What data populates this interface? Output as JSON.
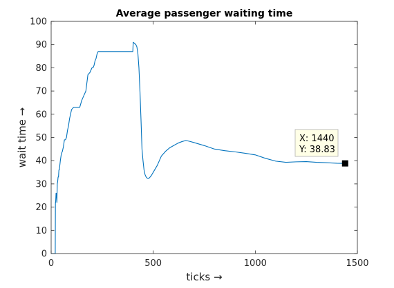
{
  "chart_data": {
    "type": "line",
    "title": "Average passenger waiting time",
    "xlabel": "ticks →",
    "ylabel": "wait time →",
    "xlim": [
      0,
      1500
    ],
    "ylim": [
      0,
      100
    ],
    "xticks": [
      0,
      500,
      1000,
      1500
    ],
    "yticks": [
      0,
      10,
      20,
      30,
      40,
      50,
      60,
      70,
      80,
      90,
      100
    ],
    "grid": false,
    "legend": null,
    "series": [
      {
        "color": "#0072BD",
        "x": [
          0,
          20,
          21,
          22,
          24,
          26,
          28,
          30,
          32,
          34,
          36,
          38,
          40,
          45,
          50,
          55,
          60,
          65,
          70,
          75,
          80,
          85,
          90,
          95,
          100,
          110,
          120,
          130,
          140,
          150,
          160,
          170,
          180,
          190,
          200,
          205,
          210,
          215,
          220,
          225,
          230,
          235,
          240,
          300,
          360,
          400,
          402,
          415,
          420,
          425,
          430,
          435,
          440,
          445,
          450,
          455,
          460,
          465,
          470,
          475,
          480,
          490,
          500,
          520,
          540,
          560,
          580,
          600,
          620,
          640,
          660,
          680,
          700,
          750,
          800,
          850,
          900,
          950,
          1000,
          1050,
          1100,
          1150,
          1200,
          1250,
          1300,
          1350,
          1400,
          1440
        ],
        "y": [
          0,
          0,
          22,
          22,
          26,
          26,
          22,
          30,
          31,
          33,
          33,
          36,
          36,
          40,
          43,
          44,
          46,
          49,
          49,
          50,
          53,
          55,
          58,
          60,
          62,
          63,
          63,
          63,
          63,
          66,
          68,
          70,
          77,
          78,
          80,
          80,
          81,
          83,
          84,
          86,
          87,
          87,
          87,
          87,
          87,
          87,
          91,
          90,
          89,
          86,
          80,
          70,
          58,
          45,
          40,
          36,
          34,
          33,
          32.5,
          32.3,
          32.5,
          33.5,
          35,
          38,
          42,
          44,
          45.5,
          46.5,
          47.5,
          48.2,
          48.7,
          48.3,
          47.8,
          46.5,
          45,
          44.3,
          43.8,
          43.2,
          42.5,
          41,
          39.8,
          39.3,
          39.5,
          39.6,
          39.3,
          39.1,
          38.9,
          38.83
        ]
      }
    ],
    "datatip": {
      "x_text": "X: 1440",
      "y_text": "Y: 38.83",
      "x": 1440,
      "y": 38.83
    }
  }
}
